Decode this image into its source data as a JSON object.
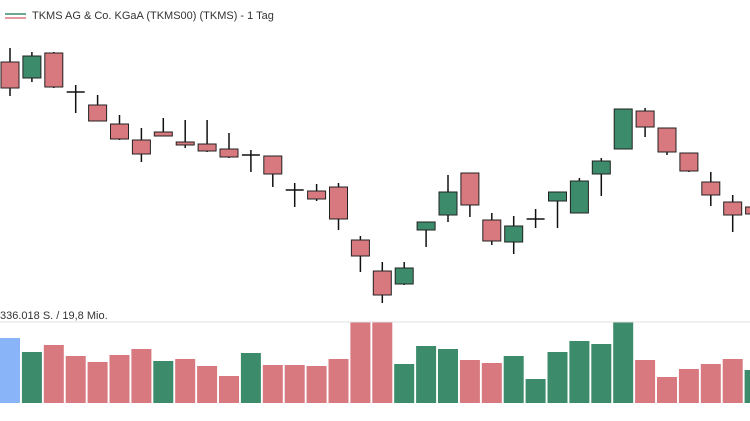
{
  "chart_data": [
    {
      "type": "candlestick",
      "title": "TKMS AG & Co. KGaA (TKMS00) (TKMS) - 1 Tag",
      "open": [
        248,
        232,
        257,
        218,
        205,
        186,
        170,
        178,
        168,
        166,
        161,
        155,
        154,
        120,
        119,
        123,
        70,
        39,
        26,
        80,
        95,
        137,
        90,
        68,
        91,
        109,
        97,
        136,
        161,
        199,
        182,
        157,
        128,
        108,
        103
      ],
      "close": [
        222,
        254,
        223,
        218,
        189,
        171,
        156,
        174,
        165,
        159,
        153,
        155,
        136,
        120,
        111,
        91,
        54,
        15,
        42,
        88,
        118,
        105,
        69,
        84,
        91,
        118,
        129,
        149,
        201,
        183,
        158,
        139,
        115,
        95,
        96
      ],
      "high": [
        262,
        258,
        258,
        225,
        215,
        195,
        182,
        192,
        190,
        190,
        177,
        160,
        154,
        127,
        126,
        127,
        74,
        48,
        48,
        88,
        135,
        137,
        97,
        94,
        101,
        118,
        132,
        152,
        201,
        202,
        182,
        157,
        138,
        115,
        105
      ],
      "low": [
        214,
        228,
        222,
        197,
        189,
        170,
        148,
        174,
        162,
        158,
        152,
        138,
        123,
        103,
        109,
        80,
        38,
        7,
        25,
        63,
        88,
        93,
        65,
        56,
        82,
        82,
        97,
        114,
        161,
        173,
        155,
        138,
        104,
        78,
        94
      ],
      "ylim": [
        0,
        300
      ],
      "up_color": "#3c8c6c",
      "down_color": "#d8787f",
      "doji_color": "#111111"
    },
    {
      "type": "bar",
      "title": "336.018 S. / 19,8 Mio.",
      "values": [
        65,
        51,
        58,
        47,
        41,
        48,
        54,
        42,
        44,
        37,
        27,
        50,
        38,
        38,
        37,
        44,
        81,
        81,
        39,
        57,
        54,
        43,
        40,
        47,
        24,
        51,
        62,
        59,
        81,
        43,
        26,
        34,
        39,
        44,
        33
      ],
      "colors": [
        "#8ab4f8",
        "#3c8c6c",
        "#d8787f",
        "#d8787f",
        "#d8787f",
        "#d8787f",
        "#d8787f",
        "#3c8c6c",
        "#d8787f",
        "#d8787f",
        "#d8787f",
        "#3c8c6c",
        "#d8787f",
        "#d8787f",
        "#d8787f",
        "#d8787f",
        "#d8787f",
        "#d8787f",
        "#3c8c6c",
        "#3c8c6c",
        "#3c8c6c",
        "#d8787f",
        "#d8787f",
        "#3c8c6c",
        "#3c8c6c",
        "#3c8c6c",
        "#3c8c6c",
        "#3c8c6c",
        "#3c8c6c",
        "#d8787f",
        "#d8787f",
        "#d8787f",
        "#d8787f",
        "#d8787f",
        "#3c8c6c"
      ],
      "ylim": [
        0,
        81
      ]
    }
  ]
}
